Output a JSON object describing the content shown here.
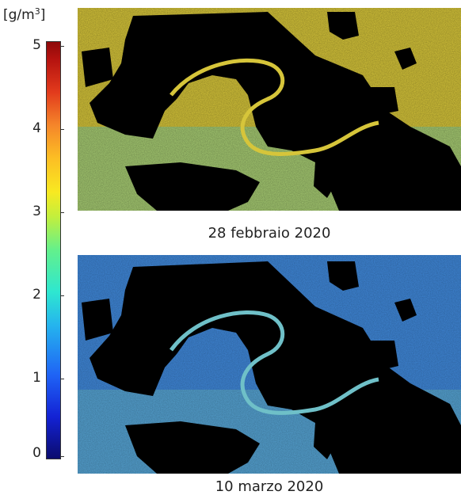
{
  "colorbar": {
    "unit_prefix": "[g/m",
    "unit_exp": "3",
    "unit_suffix": "]",
    "ticks": [
      "5",
      "4",
      "3",
      "2",
      "1",
      "0"
    ],
    "min": 0,
    "max": 5
  },
  "panels": [
    {
      "caption": "28 febbraio 2020",
      "water_color": "#d6c53a",
      "water_accent": "#7fcfa0"
    },
    {
      "caption": "10 marzo 2020",
      "water_color": "#3f86d6",
      "water_accent": "#6fc0c8"
    }
  ],
  "land_color": "#000000"
}
